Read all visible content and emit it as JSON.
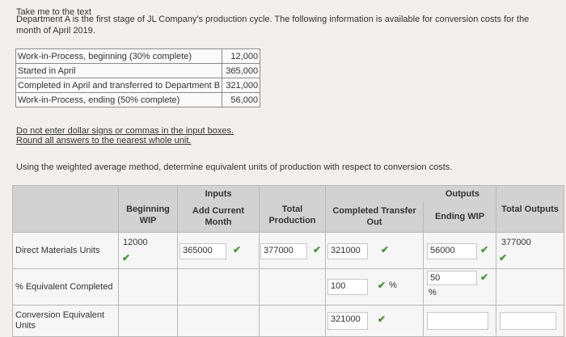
{
  "top_link": "Take me to the text",
  "intro": "Department A is the first stage of JL Company's production cycle. The following information is available for conversion costs for the month of April 2019.",
  "info_rows": [
    {
      "label": "Work-in-Process, beginning (30% complete)",
      "value": "12,000"
    },
    {
      "label": "Started in April",
      "value": "365,000"
    },
    {
      "label": "Completed in April and transferred to Department B",
      "value": "321,000"
    },
    {
      "label": "Work-in-Process, ending (50% complete)",
      "value": "56,000"
    }
  ],
  "note1": "Do not enter dollar signs or commas in the input boxes.",
  "note2": "Round all answers to the nearest whole unit.",
  "instruction": "Using the weighted average method, determine equivalent units of production with respect to conversion costs.",
  "headers": {
    "inputs": "Inputs",
    "outputs": "Outputs",
    "beginning_wip": "Beginning WIP",
    "add_current": "Add Current Month",
    "total_production": "Total Production",
    "completed_transfer": "Completed Transfer Out",
    "ending_wip": "Ending WIP",
    "total_outputs": "Total Outputs"
  },
  "rows": {
    "direct_materials_label": "Direct Materials Units",
    "equiv_completed_label": "% Equivalent Completed",
    "conversion_label": "Conversion Equivalent Units"
  },
  "values": {
    "dm_beginning": "12000",
    "dm_add_current": "365000",
    "dm_total_production": "377000",
    "dm_completed": "321000",
    "dm_ending": "56000",
    "dm_total_outputs": "377000",
    "pct_completed": "100",
    "pct_ending": "50",
    "pct_symbol": "%",
    "conv_completed": "321000",
    "conv_ending": "",
    "conv_total_outputs": ""
  },
  "check_color": "#3d9a2d",
  "check_glyph": "✔"
}
